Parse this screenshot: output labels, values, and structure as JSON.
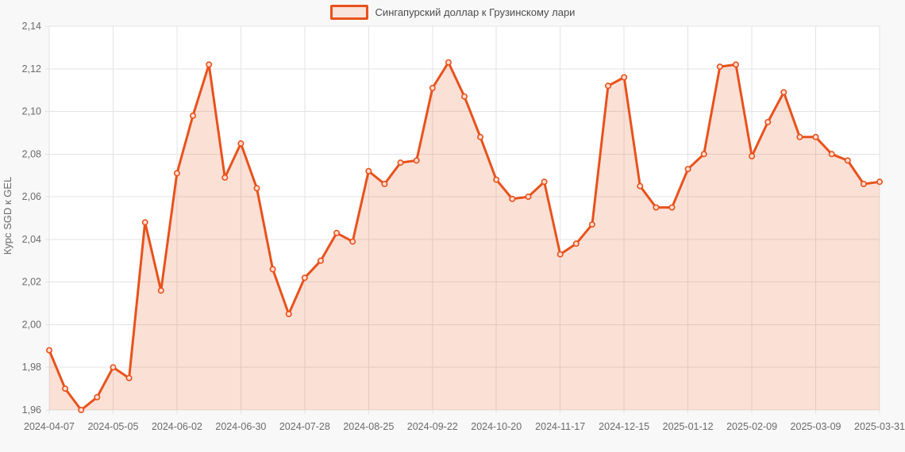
{
  "legend": {
    "label": "Сингапурский доллар к Грузинскому лари"
  },
  "chart": {
    "y_axis_title": "Курс SGD к GEL"
  },
  "colors": {
    "line": "#e8521c",
    "area_fill": "rgba(232,82,28,0.18)",
    "marker_fill": "#fbddd0",
    "grid": "#e2e3e5",
    "axis_text": "#6a6a6a",
    "page_bg": "#f8f8f9",
    "plot_bg": "#ffffff",
    "legend_swatch_fill": "#f9e3da"
  },
  "chart_data": {
    "type": "area",
    "title": "Сингапурский доллар к Грузинскому лари",
    "xlabel": "",
    "ylabel": "Курс SGD к GEL",
    "ylim": [
      1.96,
      2.14
    ],
    "grid": true,
    "legend_position": "top-center",
    "y_ticks": [
      2.14,
      2.12,
      2.1,
      2.08,
      2.06,
      2.04,
      2.02,
      2.0,
      1.98,
      1.96
    ],
    "y_tick_labels": [
      "2,14",
      "2,12",
      "2,10",
      "2,08",
      "2,06",
      "2,04",
      "2,02",
      "2,00",
      "1,98",
      "1,96"
    ],
    "x": [
      "2024-04-07",
      "2024-04-14",
      "2024-04-21",
      "2024-04-28",
      "2024-05-05",
      "2024-05-12",
      "2024-05-19",
      "2024-05-26",
      "2024-06-02",
      "2024-06-09",
      "2024-06-16",
      "2024-06-23",
      "2024-06-30",
      "2024-07-07",
      "2024-07-14",
      "2024-07-21",
      "2024-07-28",
      "2024-08-04",
      "2024-08-11",
      "2024-08-18",
      "2024-08-25",
      "2024-09-01",
      "2024-09-08",
      "2024-09-15",
      "2024-09-22",
      "2024-09-29",
      "2024-10-06",
      "2024-10-13",
      "2024-10-20",
      "2024-10-27",
      "2024-11-03",
      "2024-11-10",
      "2024-11-17",
      "2024-11-24",
      "2024-12-01",
      "2024-12-08",
      "2024-12-15",
      "2024-12-22",
      "2024-12-29",
      "2025-01-05",
      "2025-01-12",
      "2025-01-19",
      "2025-01-26",
      "2025-02-02",
      "2025-02-09",
      "2025-02-16",
      "2025-02-23",
      "2025-03-02",
      "2025-03-09",
      "2025-03-16",
      "2025-03-23",
      "2025-03-30",
      "2025-03-31"
    ],
    "series": [
      {
        "name": "Сингапурский доллар к Грузинскому лари",
        "values": [
          1.988,
          1.97,
          1.96,
          1.966,
          1.98,
          1.975,
          2.048,
          2.016,
          2.071,
          2.098,
          2.122,
          2.069,
          2.085,
          2.064,
          2.026,
          2.005,
          2.022,
          2.03,
          2.043,
          2.039,
          2.072,
          2.066,
          2.076,
          2.077,
          2.111,
          2.123,
          2.107,
          2.088,
          2.068,
          2.059,
          2.06,
          2.067,
          2.033,
          2.038,
          2.047,
          2.112,
          2.116,
          2.065,
          2.055,
          2.055,
          2.073,
          2.08,
          2.121,
          2.122,
          2.079,
          2.095,
          2.109,
          2.088,
          2.088,
          2.08,
          2.077,
          2.066,
          2.067
        ]
      }
    ],
    "x_tick_indices": [
      0,
      4,
      8,
      12,
      16,
      20,
      24,
      28,
      32,
      36,
      40,
      44,
      48,
      52
    ],
    "x_tick_labels": [
      "2024-04-07",
      "2024-05-05",
      "2024-06-02",
      "2024-06-30",
      "2024-07-28",
      "2024-08-25",
      "2024-09-22",
      "2024-10-20",
      "2024-11-17",
      "2024-12-15",
      "2025-01-12",
      "2025-02-09",
      "2025-03-09",
      "2025-03-31"
    ]
  }
}
